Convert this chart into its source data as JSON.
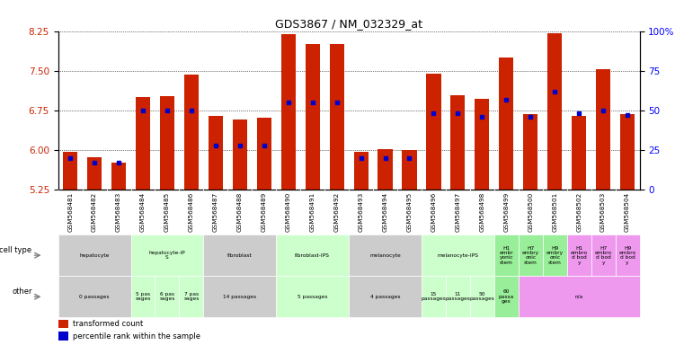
{
  "title": "GDS3867 / NM_032329_at",
  "samples": [
    "GSM568481",
    "GSM568482",
    "GSM568483",
    "GSM568484",
    "GSM568485",
    "GSM568486",
    "GSM568487",
    "GSM568488",
    "GSM568489",
    "GSM568490",
    "GSM568491",
    "GSM568492",
    "GSM568493",
    "GSM568494",
    "GSM568495",
    "GSM568496",
    "GSM568497",
    "GSM568498",
    "GSM568499",
    "GSM568500",
    "GSM568501",
    "GSM568502",
    "GSM568503",
    "GSM568504"
  ],
  "transformed_count": [
    5.97,
    5.87,
    5.76,
    7.0,
    7.02,
    7.43,
    6.65,
    6.58,
    6.62,
    8.2,
    8.0,
    8.0,
    5.97,
    6.02,
    6.0,
    7.45,
    7.03,
    6.97,
    7.75,
    6.68,
    8.21,
    6.65,
    7.53,
    6.68
  ],
  "percentile_rank": [
    20,
    17,
    17,
    50,
    50,
    50,
    28,
    28,
    28,
    55,
    55,
    55,
    20,
    20,
    20,
    48,
    48,
    46,
    57,
    46,
    62,
    48,
    50,
    47
  ],
  "y_min": 5.25,
  "y_max": 8.25,
  "y_ticks": [
    5.25,
    6.0,
    6.75,
    7.5,
    8.25
  ],
  "right_y_ticks": [
    0,
    25,
    50,
    75,
    100
  ],
  "bar_color": "#cc2200",
  "dot_color": "#0000cc",
  "cell_types": [
    {
      "label": "hepatocyte",
      "start": 0,
      "end": 2,
      "color": "#cccccc"
    },
    {
      "label": "hepatocyte-iP\nS",
      "start": 3,
      "end": 5,
      "color": "#ccffcc"
    },
    {
      "label": "fibroblast",
      "start": 6,
      "end": 8,
      "color": "#cccccc"
    },
    {
      "label": "fibroblast-IPS",
      "start": 9,
      "end": 11,
      "color": "#ccffcc"
    },
    {
      "label": "melanocyte",
      "start": 12,
      "end": 14,
      "color": "#cccccc"
    },
    {
      "label": "melanocyte-IPS",
      "start": 15,
      "end": 17,
      "color": "#ccffcc"
    },
    {
      "label": "H1\nembr\nyonic\nstem",
      "start": 18,
      "end": 18,
      "color": "#99ee99"
    },
    {
      "label": "H7\nembry\nonic\nstem",
      "start": 19,
      "end": 19,
      "color": "#99ee99"
    },
    {
      "label": "H9\nembry\nonic\nstem",
      "start": 20,
      "end": 20,
      "color": "#99ee99"
    },
    {
      "label": "H1\nembro\nd bod\ny",
      "start": 21,
      "end": 21,
      "color": "#ee99ee"
    },
    {
      "label": "H7\nembro\nd bod\ny",
      "start": 22,
      "end": 22,
      "color": "#ee99ee"
    },
    {
      "label": "H9\nembro\nd bod\ny",
      "start": 23,
      "end": 23,
      "color": "#ee99ee"
    }
  ],
  "other_labels": [
    {
      "label": "0 passages",
      "start": 0,
      "end": 2,
      "color": "#cccccc"
    },
    {
      "label": "5 pas\nsages",
      "start": 3,
      "end": 3,
      "color": "#ccffcc"
    },
    {
      "label": "6 pas\nsages",
      "start": 4,
      "end": 4,
      "color": "#ccffcc"
    },
    {
      "label": "7 pas\nsages",
      "start": 5,
      "end": 5,
      "color": "#ccffcc"
    },
    {
      "label": "14 passages",
      "start": 6,
      "end": 8,
      "color": "#cccccc"
    },
    {
      "label": "5 passages",
      "start": 9,
      "end": 11,
      "color": "#ccffcc"
    },
    {
      "label": "4 passages",
      "start": 12,
      "end": 14,
      "color": "#cccccc"
    },
    {
      "label": "15\npassages",
      "start": 15,
      "end": 15,
      "color": "#ccffcc"
    },
    {
      "label": "11\npassages",
      "start": 16,
      "end": 16,
      "color": "#ccffcc"
    },
    {
      "label": "50\npassages",
      "start": 17,
      "end": 17,
      "color": "#ccffcc"
    },
    {
      "label": "60\npassa\nges",
      "start": 18,
      "end": 18,
      "color": "#99ee99"
    },
    {
      "label": "n/a",
      "start": 19,
      "end": 23,
      "color": "#ee99ee"
    }
  ]
}
